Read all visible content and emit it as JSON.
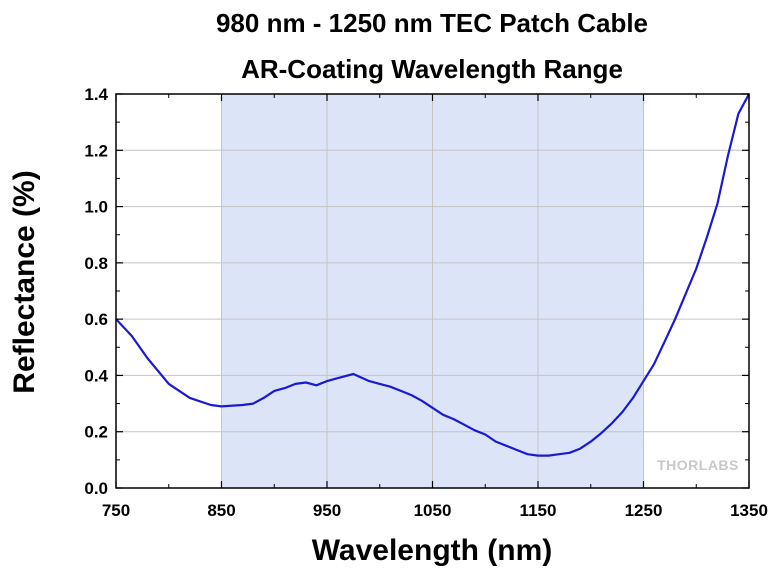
{
  "chart_data": {
    "type": "line",
    "title": [
      "980 nm - 1250 nm TEC Patch Cable",
      "AR-Coating Wavelength Range"
    ],
    "xlabel": "Wavelength (nm)",
    "ylabel": "Reflectance (%)",
    "xlim": [
      750,
      1350
    ],
    "ylim": [
      0,
      1.4
    ],
    "xticks": [
      750,
      850,
      950,
      1050,
      1150,
      1250,
      1350
    ],
    "xtick_labels": [
      "750",
      "850",
      "950",
      "1050",
      "1150",
      "1250",
      "1350"
    ],
    "yticks": [
      0,
      0.2,
      0.4,
      0.6,
      0.8,
      1.0,
      1.2,
      1.4
    ],
    "ytick_labels": [
      "0.0",
      "0.2",
      "0.4",
      "0.6",
      "0.8",
      "1.0",
      "1.2",
      "1.4"
    ],
    "grid": true,
    "highlight_range": [
      850,
      1250
    ],
    "highlight_color": "#dce4f7",
    "line_color": "#1a1ad0",
    "series": [
      {
        "x": [
          750,
          765,
          780,
          800,
          820,
          840,
          850,
          870,
          880,
          890,
          900,
          910,
          920,
          930,
          940,
          950,
          960,
          975,
          990,
          1000,
          1010,
          1020,
          1030,
          1040,
          1050,
          1060,
          1070,
          1080,
          1090,
          1100,
          1110,
          1120,
          1130,
          1140,
          1150,
          1160,
          1170,
          1180,
          1190,
          1200,
          1210,
          1220,
          1230,
          1240,
          1250,
          1260,
          1270,
          1280,
          1290,
          1300,
          1310,
          1320,
          1330,
          1340,
          1350
        ],
        "y": [
          0.6,
          0.54,
          0.46,
          0.37,
          0.32,
          0.295,
          0.29,
          0.295,
          0.3,
          0.32,
          0.345,
          0.355,
          0.37,
          0.375,
          0.365,
          0.38,
          0.39,
          0.405,
          0.38,
          0.37,
          0.36,
          0.345,
          0.33,
          0.31,
          0.285,
          0.26,
          0.245,
          0.225,
          0.205,
          0.19,
          0.165,
          0.15,
          0.135,
          0.12,
          0.115,
          0.115,
          0.12,
          0.125,
          0.14,
          0.165,
          0.195,
          0.23,
          0.27,
          0.32,
          0.38,
          0.44,
          0.52,
          0.6,
          0.69,
          0.78,
          0.89,
          1.01,
          1.18,
          1.33,
          1.4
        ]
      }
    ],
    "watermark": "THORLABS"
  }
}
